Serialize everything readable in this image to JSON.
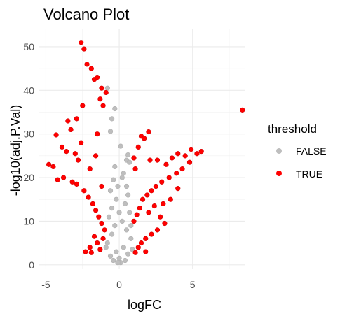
{
  "chart_data": {
    "type": "scatter",
    "title": "Volcano Plot",
    "xlabel": "logFC",
    "ylabel": "-log10(adj.P.Val)",
    "xlim": [
      -5.5,
      8.6
    ],
    "ylim": [
      -1,
      54
    ],
    "xticks": [
      -5,
      0,
      5
    ],
    "yticks": [
      0,
      10,
      20,
      30,
      40,
      50
    ],
    "grid": true,
    "legend_position": "right",
    "legend": {
      "title": "threshold",
      "entries": [
        {
          "label": "FALSE",
          "color": "#bebebe"
        },
        {
          "label": "TRUE",
          "color": "#ff0000"
        }
      ]
    },
    "series": [
      {
        "name": "FALSE",
        "color": "#bebebe",
        "points": [
          [
            -0.8,
            40.5
          ],
          [
            -0.3,
            35.8
          ],
          [
            -0.5,
            33.5
          ],
          [
            -0.6,
            30.6
          ],
          [
            0.1,
            27.2
          ],
          [
            0.6,
            25.2
          ],
          [
            0.5,
            24.0
          ],
          [
            0.7,
            23.5
          ],
          [
            -0.3,
            22.5
          ],
          [
            0.3,
            21.0
          ],
          [
            -0.4,
            19.5
          ],
          [
            0.5,
            18.0
          ],
          [
            -0.6,
            17.0
          ],
          [
            0.6,
            16.0
          ],
          [
            -0.2,
            15.0
          ],
          [
            0.4,
            14.0
          ],
          [
            -0.5,
            13.0
          ],
          [
            0.7,
            12.0
          ],
          [
            -0.7,
            11.0
          ],
          [
            0.2,
            10.0
          ],
          [
            -0.3,
            9.0
          ],
          [
            0.5,
            8.0
          ],
          [
            -0.5,
            7.0
          ],
          [
            0.8,
            6.0
          ],
          [
            -0.8,
            5.0
          ],
          [
            0.3,
            4.0
          ],
          [
            -0.2,
            3.0
          ],
          [
            0.6,
            2.5
          ],
          [
            -0.6,
            2.0
          ],
          [
            0.0,
            1.5
          ],
          [
            0.4,
            1.0
          ],
          [
            -0.4,
            1.0
          ],
          [
            0.1,
            0.5
          ],
          [
            -0.1,
            0.5
          ],
          [
            0.9,
            3.5
          ],
          [
            -0.9,
            4.0
          ],
          [
            0.0,
            12.0
          ],
          [
            0.2,
            20.0
          ],
          [
            -0.1,
            18.0
          ],
          [
            0.8,
            9.0
          ]
        ]
      },
      {
        "name": "TRUE",
        "color": "#ff0000",
        "points": [
          [
            -2.6,
            51.0
          ],
          [
            -2.4,
            49.5
          ],
          [
            -2.2,
            46.0
          ],
          [
            -1.9,
            45.0
          ],
          [
            -1.7,
            42.5
          ],
          [
            -1.5,
            43.0
          ],
          [
            -1.2,
            40.5
          ],
          [
            -0.9,
            39.5
          ],
          [
            -1.3,
            38.0
          ],
          [
            -1.1,
            36.5
          ],
          [
            -2.5,
            36.5
          ],
          [
            -2.9,
            33.5
          ],
          [
            -3.5,
            33.0
          ],
          [
            -4.3,
            29.8
          ],
          [
            -3.3,
            31.0
          ],
          [
            -3.9,
            27.0
          ],
          [
            -3.6,
            26.0
          ],
          [
            -3.0,
            25.5
          ],
          [
            -2.8,
            24.0
          ],
          [
            -4.8,
            23.0
          ],
          [
            -4.5,
            22.5
          ],
          [
            -4.2,
            19.5
          ],
          [
            -3.8,
            20.0
          ],
          [
            -3.2,
            19.0
          ],
          [
            -2.9,
            18.5
          ],
          [
            -2.4,
            17.0
          ],
          [
            -2.1,
            15.5
          ],
          [
            -1.8,
            14.0
          ],
          [
            -1.6,
            12.5
          ],
          [
            -1.4,
            11.0
          ],
          [
            -1.2,
            9.5
          ],
          [
            -1.0,
            8.0
          ],
          [
            -1.7,
            6.5
          ],
          [
            -1.5,
            5.0
          ],
          [
            -2.0,
            4.0
          ],
          [
            -2.3,
            3.0
          ],
          [
            -1.9,
            2.8
          ],
          [
            -1.3,
            3.5
          ],
          [
            -1.1,
            6.0
          ],
          [
            -2.6,
            28.0
          ],
          [
            -1.5,
            30.0
          ],
          [
            -2.0,
            22.0
          ],
          [
            -1.2,
            18.0
          ],
          [
            -1.6,
            25.0
          ],
          [
            1.5,
            29.5
          ],
          [
            1.7,
            29.0
          ],
          [
            2.0,
            30.5
          ],
          [
            1.3,
            27.0
          ],
          [
            1.0,
            24.5
          ],
          [
            1.1,
            22.0
          ],
          [
            2.1,
            24.0
          ],
          [
            2.6,
            24.0
          ],
          [
            3.2,
            23.0
          ],
          [
            3.6,
            24.5
          ],
          [
            4.0,
            25.5
          ],
          [
            4.5,
            25.0
          ],
          [
            4.9,
            26.5
          ],
          [
            5.3,
            25.5
          ],
          [
            5.6,
            26.0
          ],
          [
            4.8,
            23.5
          ],
          [
            4.3,
            22.0
          ],
          [
            3.9,
            21.0
          ],
          [
            3.4,
            20.0
          ],
          [
            2.9,
            19.0
          ],
          [
            2.5,
            18.0
          ],
          [
            2.2,
            17.0
          ],
          [
            1.9,
            16.0
          ],
          [
            1.6,
            15.0
          ],
          [
            1.4,
            13.0
          ],
          [
            1.2,
            11.5
          ],
          [
            1.0,
            10.0
          ],
          [
            2.0,
            12.0
          ],
          [
            2.4,
            13.5
          ],
          [
            2.8,
            11.0
          ],
          [
            3.1,
            9.5
          ],
          [
            2.6,
            8.0
          ],
          [
            2.2,
            7.0
          ],
          [
            1.8,
            6.0
          ],
          [
            1.5,
            5.0
          ],
          [
            1.3,
            4.0
          ],
          [
            1.8,
            3.0
          ],
          [
            1.1,
            2.8
          ],
          [
            3.5,
            15.0
          ],
          [
            3.0,
            14.0
          ],
          [
            4.0,
            17.5
          ],
          [
            8.4,
            35.5
          ]
        ]
      }
    ]
  }
}
